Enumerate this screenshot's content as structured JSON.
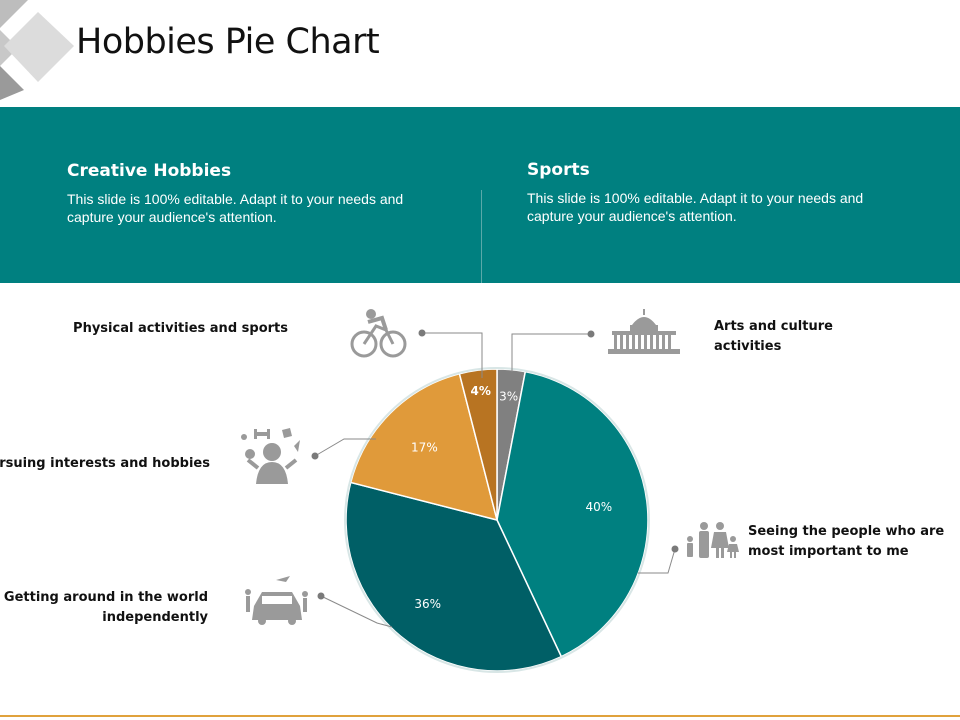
{
  "title": "Hobbies Pie Chart",
  "band": {
    "left": {
      "heading": "Creative Hobbies",
      "text": "This slide is 100% editable. Adapt it to your needs and capture your audience's attention."
    },
    "right": {
      "heading": "Sports",
      "text": "This slide is 100% editable. Adapt it to your needs and capture your audience's attention."
    }
  },
  "colors": {
    "teal": "#008080",
    "dark_teal": "#005f66",
    "orange": "#e09a3a",
    "dark_orange": "#b87422",
    "gray": "#808080",
    "icon_gray": "#9a9a9a",
    "accent_line": "#e0a23c"
  },
  "chart_data": {
    "type": "pie",
    "slices": [
      {
        "label": "Arts and culture activities",
        "value": 3,
        "display": "3%",
        "color": "#808080",
        "icon": "capitol-building-icon"
      },
      {
        "label": "Seeing the people who are most important to me",
        "value": 40,
        "display": "40%",
        "color": "#008080",
        "icon": "family-icon"
      },
      {
        "label": "Getting around in the world independently",
        "value": 36,
        "display": "36%",
        "color": "#005f66",
        "icon": "car-travel-icon"
      },
      {
        "label": "Pursuing interests and hobbies",
        "value": 17,
        "display": "17%",
        "color": "#e09a3a",
        "icon": "juggling-person-icon"
      },
      {
        "label": "Physical activities and sports",
        "value": 4,
        "display": "4%",
        "color": "#b87422",
        "icon": "cyclist-icon"
      }
    ]
  }
}
